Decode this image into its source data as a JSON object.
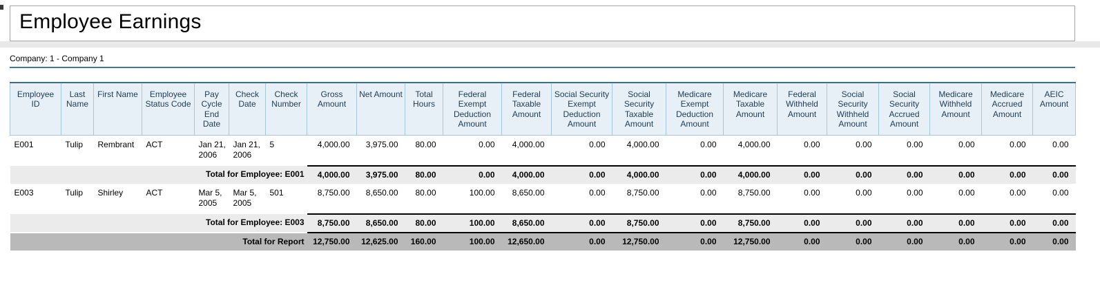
{
  "report": {
    "title": "Employee Earnings",
    "company_line": "Company: 1 - Company 1"
  },
  "colors": {
    "accent_line": "#44779d",
    "table_top_border": "#3d6d8e",
    "header_bg": "#e7f0f7",
    "header_border": "#a5c6db",
    "header_text": "#1f3b53",
    "employee_total_row_bg": "#ebebeb",
    "report_total_row_bg": "#b9b9b9"
  },
  "table": {
    "columns": [
      "Employee ID",
      "Last Name",
      "First Name",
      "Employee Status Code",
      "Pay Cycle End Date",
      "Check Date",
      "Check Number",
      "Gross Amount",
      "Net Amount",
      "Total Hours",
      "Federal Exempt Deduction Amount",
      "Federal Taxable Amount",
      "Social Security Exempt Deduction Amount",
      "Social Security Taxable Amount",
      "Medicare Exempt Deduction Amount",
      "Medicare Taxable Amount",
      "Federal Withheld Amount",
      "Social Security Withheld Amount",
      "Social Security Accrued Amount",
      "Medicare Withheld Amount",
      "Medicare Accrued Amount",
      "AEIC Amount"
    ],
    "rows": [
      {
        "cells": [
          "E001",
          "Tulip",
          "Rembrant",
          "ACT",
          "Jan 21, 2006",
          "Jan 21, 2006",
          "5",
          "4,000.00",
          "3,975.00",
          "80.00",
          "0.00",
          "4,000.00",
          "0.00",
          "4,000.00",
          "0.00",
          "4,000.00",
          "0.00",
          "0.00",
          "0.00",
          "0.00",
          "0.00",
          "0.00"
        ]
      },
      {
        "label": "Total for Employee: E001",
        "values": [
          "4,000.00",
          "3,975.00",
          "80.00",
          "0.00",
          "4,000.00",
          "0.00",
          "4,000.00",
          "0.00",
          "4,000.00",
          "0.00",
          "0.00",
          "0.00",
          "0.00",
          "0.00",
          "0.00"
        ]
      },
      {
        "cells": [
          "E003",
          "Tulip",
          "Shirley",
          "ACT",
          "Mar 5, 2005",
          "Mar 5, 2005",
          "501",
          "8,750.00",
          "8,650.00",
          "80.00",
          "100.00",
          "8,650.00",
          "0.00",
          "8,750.00",
          "0.00",
          "8,750.00",
          "0.00",
          "0.00",
          "0.00",
          "0.00",
          "0.00",
          "0.00"
        ]
      },
      {
        "label": "Total for Employee: E003",
        "values": [
          "8,750.00",
          "8,650.00",
          "80.00",
          "100.00",
          "8,650.00",
          "0.00",
          "8,750.00",
          "0.00",
          "8,750.00",
          "0.00",
          "0.00",
          "0.00",
          "0.00",
          "0.00",
          "0.00"
        ]
      },
      {
        "label": "Total for Report",
        "values": [
          "12,750.00",
          "12,625.00",
          "160.00",
          "100.00",
          "12,650.00",
          "0.00",
          "12,750.00",
          "0.00",
          "12,750.00",
          "0.00",
          "0.00",
          "0.00",
          "0.00",
          "0.00",
          "0.00"
        ]
      }
    ]
  }
}
